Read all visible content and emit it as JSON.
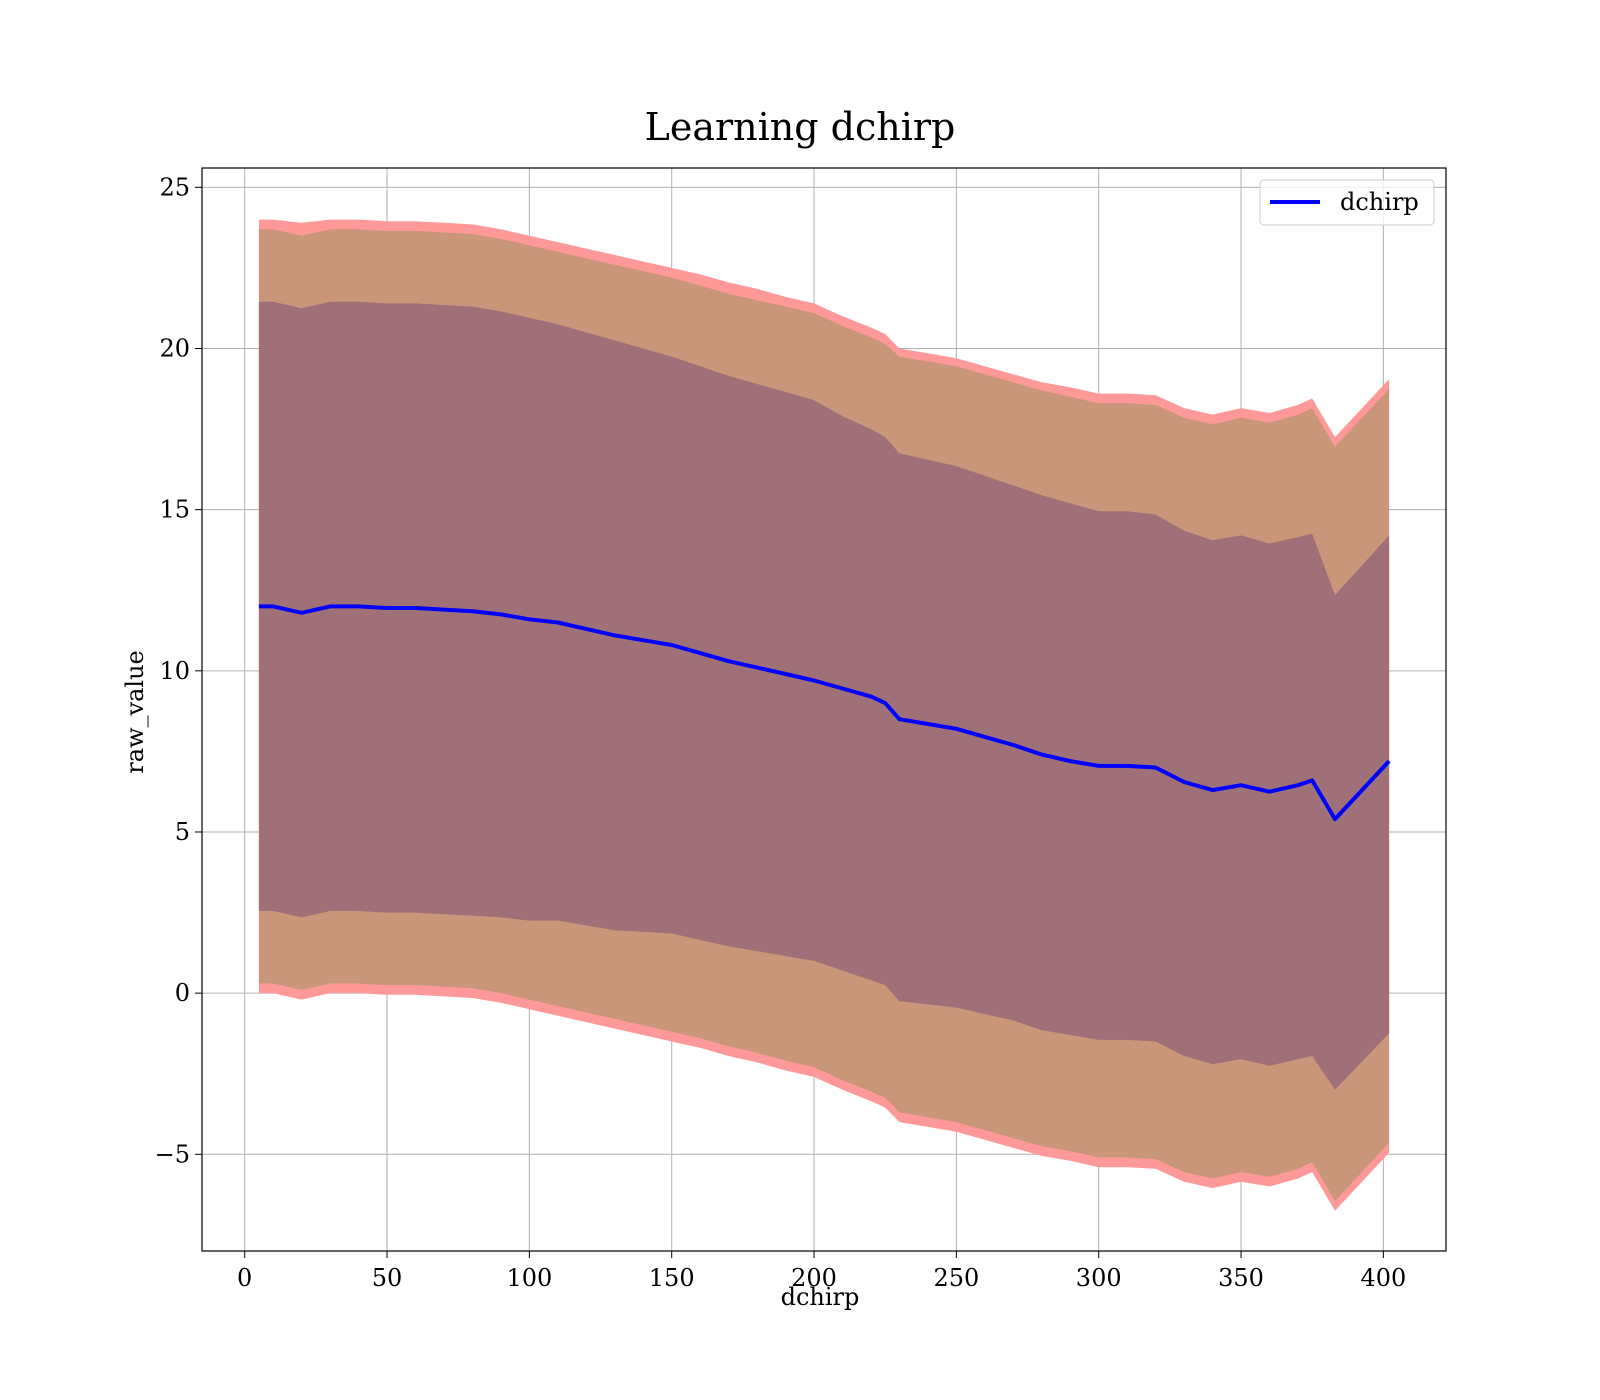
{
  "chart_data": {
    "type": "area",
    "title": "Learning dchirp",
    "xlabel": "dchirp",
    "ylabel": "raw_value",
    "xlim": [
      -15,
      422
    ],
    "ylim": [
      -8,
      25.6
    ],
    "xticks": [
      0,
      50,
      100,
      150,
      200,
      250,
      300,
      350,
      400
    ],
    "yticks": [
      -5,
      0,
      5,
      10,
      15,
      20,
      25
    ],
    "grid": true,
    "legend": {
      "position": "top-right",
      "entries": [
        "dchirp"
      ]
    },
    "x": [
      5,
      10,
      20,
      30,
      40,
      50,
      60,
      70,
      80,
      90,
      100,
      110,
      120,
      130,
      140,
      150,
      160,
      170,
      180,
      190,
      200,
      210,
      220,
      225,
      230,
      240,
      250,
      260,
      270,
      280,
      290,
      300,
      310,
      320,
      330,
      340,
      350,
      360,
      370,
      375,
      383,
      402
    ],
    "mean": [
      12.0,
      12.0,
      11.8,
      12.0,
      12.0,
      11.95,
      11.95,
      11.9,
      11.85,
      11.75,
      11.6,
      11.5,
      11.3,
      11.1,
      10.95,
      10.8,
      10.55,
      10.3,
      10.1,
      9.9,
      9.7,
      9.45,
      9.2,
      9.0,
      8.5,
      8.35,
      8.2,
      7.95,
      7.7,
      7.4,
      7.2,
      7.05,
      7.05,
      7.0,
      6.55,
      6.3,
      6.45,
      6.25,
      6.45,
      6.6,
      5.4,
      7.2
    ],
    "band_outer_upper": [
      24.0,
      24.0,
      23.9,
      24.0,
      24.0,
      23.95,
      23.95,
      23.9,
      23.85,
      23.7,
      23.5,
      23.3,
      23.1,
      22.9,
      22.7,
      22.5,
      22.3,
      22.05,
      21.85,
      21.6,
      21.4,
      21.0,
      20.65,
      20.45,
      20.0,
      19.85,
      19.7,
      19.45,
      19.2,
      18.95,
      18.8,
      18.6,
      18.6,
      18.55,
      18.15,
      17.95,
      18.15,
      18.0,
      18.25,
      18.45,
      17.25,
      19.05
    ],
    "band_outer_lower": [
      0.0,
      0.0,
      -0.2,
      0.0,
      0.0,
      -0.05,
      -0.05,
      -0.1,
      -0.15,
      -0.3,
      -0.5,
      -0.7,
      -0.9,
      -1.1,
      -1.3,
      -1.5,
      -1.7,
      -1.95,
      -2.15,
      -2.4,
      -2.6,
      -3.0,
      -3.35,
      -3.55,
      -4.0,
      -4.15,
      -4.3,
      -4.55,
      -4.8,
      -5.05,
      -5.2,
      -5.4,
      -5.4,
      -5.45,
      -5.85,
      -6.05,
      -5.85,
      -6.0,
      -5.75,
      -5.55,
      -6.75,
      -4.95
    ],
    "band_mid_upper": [
      23.7,
      23.7,
      23.5,
      23.7,
      23.7,
      23.65,
      23.65,
      23.6,
      23.55,
      23.4,
      23.2,
      23.0,
      22.8,
      22.6,
      22.4,
      22.2,
      21.95,
      21.7,
      21.5,
      21.3,
      21.1,
      20.7,
      20.35,
      20.15,
      19.75,
      19.6,
      19.45,
      19.2,
      18.95,
      18.7,
      18.5,
      18.3,
      18.3,
      18.25,
      17.85,
      17.65,
      17.85,
      17.7,
      17.95,
      18.15,
      16.95,
      18.75
    ],
    "band_mid_lower": [
      0.3,
      0.3,
      0.1,
      0.3,
      0.3,
      0.25,
      0.25,
      0.2,
      0.15,
      0.0,
      -0.2,
      -0.4,
      -0.6,
      -0.8,
      -1.0,
      -1.2,
      -1.4,
      -1.65,
      -1.85,
      -2.1,
      -2.3,
      -2.7,
      -3.05,
      -3.25,
      -3.7,
      -3.85,
      -4.0,
      -4.25,
      -4.5,
      -4.75,
      -4.9,
      -5.1,
      -5.1,
      -5.15,
      -5.55,
      -5.75,
      -5.55,
      -5.7,
      -5.45,
      -5.25,
      -6.45,
      -4.65
    ],
    "band_inner_upper": [
      21.45,
      21.45,
      21.25,
      21.45,
      21.45,
      21.4,
      21.4,
      21.35,
      21.3,
      21.15,
      20.95,
      20.75,
      20.5,
      20.25,
      20.0,
      19.75,
      19.45,
      19.15,
      18.9,
      18.65,
      18.4,
      17.9,
      17.5,
      17.25,
      16.75,
      16.55,
      16.35,
      16.05,
      15.75,
      15.45,
      15.2,
      14.95,
      14.95,
      14.85,
      14.35,
      14.05,
      14.2,
      13.95,
      14.15,
      14.25,
      12.35,
      14.2
    ],
    "band_inner_lower": [
      2.55,
      2.55,
      2.35,
      2.55,
      2.55,
      2.5,
      2.5,
      2.45,
      2.4,
      2.35,
      2.25,
      2.25,
      2.1,
      1.95,
      1.9,
      1.85,
      1.65,
      1.45,
      1.3,
      1.15,
      1.0,
      0.7,
      0.4,
      0.25,
      -0.25,
      -0.35,
      -0.45,
      -0.65,
      -0.85,
      -1.15,
      -1.3,
      -1.45,
      -1.45,
      -1.5,
      -1.95,
      -2.2,
      -2.05,
      -2.25,
      -2.05,
      -1.95,
      -3.0,
      -1.25
    ],
    "colors": {
      "mean_line": "#0000ff",
      "band_outer": "#ff9999",
      "band_mid": "#c9967a",
      "band_inner": "#a07078"
    }
  }
}
